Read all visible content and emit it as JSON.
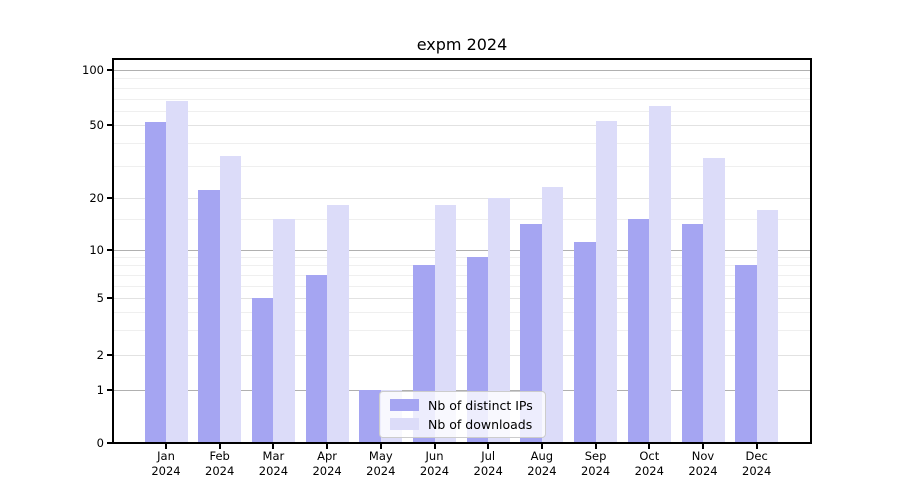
{
  "title": "expm 2024",
  "axes": {
    "y_tick_labels": [
      "100",
      "50",
      "20",
      "10",
      "5",
      "2",
      "1",
      "0"
    ],
    "x_months": [
      "Jan",
      "Feb",
      "Mar",
      "Apr",
      "May",
      "Jun",
      "Jul",
      "Aug",
      "Sep",
      "Oct",
      "Nov",
      "Dec"
    ],
    "x_year": "2024"
  },
  "legend": {
    "items": [
      "Nb of distinct IPs",
      "Nb of downloads"
    ]
  },
  "chart_data": {
    "type": "bar",
    "title": "expm 2024",
    "categories": [
      "Jan 2024",
      "Feb 2024",
      "Mar 2024",
      "Apr 2024",
      "May 2024",
      "Jun 2024",
      "Jul 2024",
      "Aug 2024",
      "Sep 2024",
      "Oct 2024",
      "Nov 2024",
      "Dec 2024"
    ],
    "series": [
      {
        "name": "Nb of distinct IPs",
        "color": "#a5a5f2",
        "values": [
          52,
          22,
          5,
          7,
          1,
          8,
          9,
          14,
          11,
          15,
          14,
          8
        ]
      },
      {
        "name": "Nb of downloads",
        "color": "#dcdcf9",
        "values": [
          68,
          34,
          15,
          18,
          1,
          18,
          20,
          23,
          53,
          64,
          33,
          17
        ]
      }
    ],
    "yscale": "log-like",
    "ylim": [
      0,
      100
    ],
    "y_major_ticks": [
      0,
      1,
      2,
      5,
      10,
      20,
      50,
      100
    ],
    "y_minor_ticks": [
      3,
      4,
      6,
      7,
      8,
      9,
      15,
      30,
      40,
      60,
      70,
      80,
      90
    ],
    "grid": true,
    "legend_position": "lower center"
  },
  "colors": {
    "bar_dark": "#a5a5f2",
    "bar_light": "#dcdcf9",
    "grid_strong": "#b0b0b0",
    "grid_major": "#e2e2e2",
    "grid_minor": "#efefef",
    "spine": "#000000",
    "background": "#ffffff"
  }
}
